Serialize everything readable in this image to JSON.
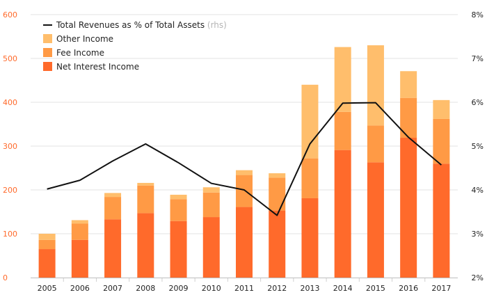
{
  "chart_data": {
    "type": "bar",
    "stacked": true,
    "categories": [
      "2005",
      "2006",
      "2007",
      "2008",
      "2009",
      "2010",
      "2011",
      "2012",
      "2013",
      "2014",
      "2015",
      "2016",
      "2017"
    ],
    "series": [
      {
        "name": "Net Interest Income",
        "color": "#ff6a2b",
        "axis": "left",
        "values": [
          65,
          86,
          133,
          147,
          129,
          138,
          161,
          153,
          181,
          291,
          263,
          319,
          260
        ]
      },
      {
        "name": "Fee Income",
        "color": "#ff9a45",
        "axis": "left",
        "values": [
          21,
          37,
          51,
          63,
          50,
          56,
          73,
          75,
          91,
          87,
          84,
          91,
          102
        ]
      },
      {
        "name": "Other Income",
        "color": "#ffbe6c",
        "axis": "left",
        "values": [
          14,
          8,
          9,
          6,
          10,
          12,
          11,
          10,
          168,
          148,
          183,
          61,
          43
        ]
      }
    ],
    "line": {
      "name": "Total Revenues as % of Total Assets",
      "suffix": "(rhs)",
      "color": "#111111",
      "axis": "right",
      "values": [
        4.02,
        4.22,
        4.66,
        5.05,
        4.62,
        4.15,
        4.0,
        3.42,
        5.05,
        5.98,
        5.99,
        5.2,
        4.57
      ]
    },
    "left_axis": {
      "min": 0,
      "max": 600,
      "ticks": [
        "0",
        "100",
        "200",
        "300",
        "400",
        "500",
        "600"
      ],
      "tick_color": "#ff6a2b"
    },
    "right_axis": {
      "min": 2,
      "max": 8,
      "ticks": [
        "2%",
        "3%",
        "4%",
        "5%",
        "6%",
        "7%",
        "8%"
      ],
      "tick_color": "#222222"
    },
    "grid": true,
    "legend_position": "top-left",
    "title": "",
    "xlabel": "",
    "ylabel": ""
  }
}
